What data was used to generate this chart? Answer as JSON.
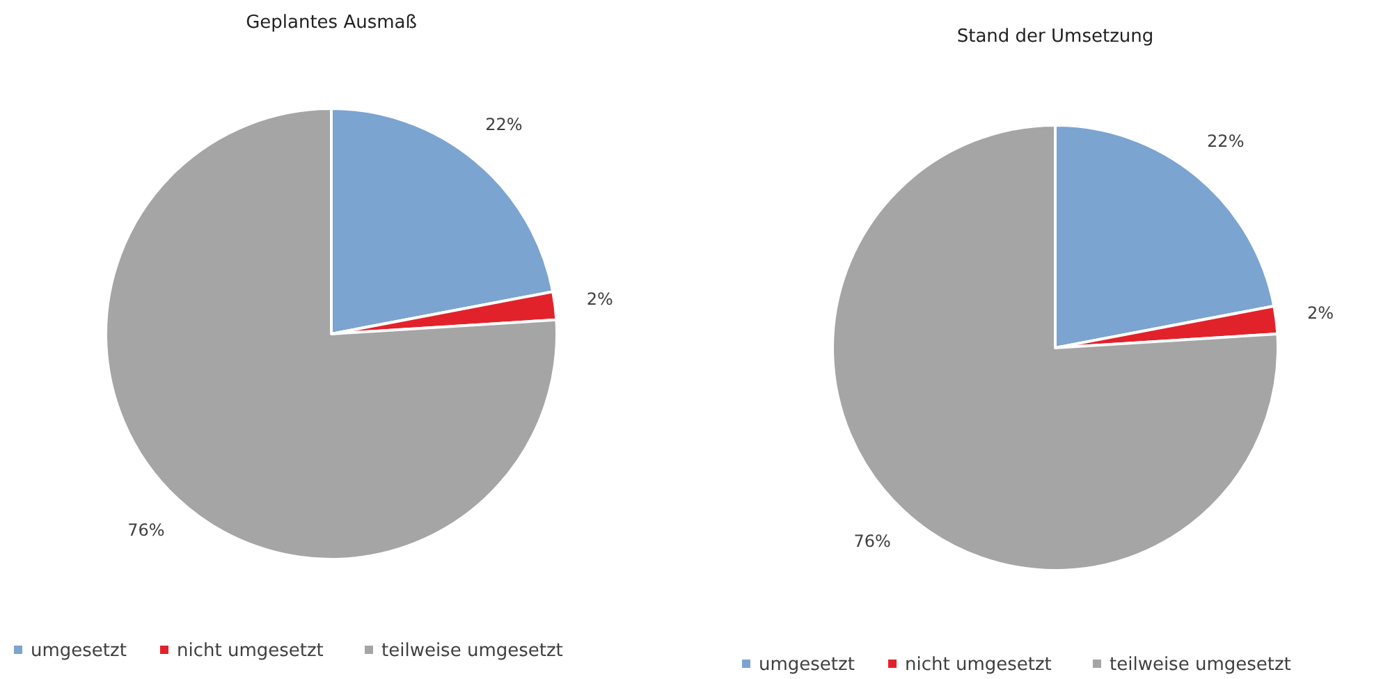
{
  "chart_data": [
    {
      "type": "pie",
      "title": "Geplantes Ausmaß",
      "categories": [
        "umgesetzt",
        "nicht umgesetzt",
        "teilweise umgesetzt"
      ],
      "values": [
        22,
        2,
        76
      ],
      "colors": [
        "#7ba4d0",
        "#e2222b",
        "#a5a5a5"
      ],
      "value_labels": [
        "22%",
        "2%",
        "76%"
      ],
      "legend": "bottom"
    },
    {
      "type": "pie",
      "title": "Stand der Umsetzung",
      "categories": [
        "umgesetzt",
        "nicht umgesetzt",
        "teilweise umgesetzt"
      ],
      "values": [
        22,
        2,
        76
      ],
      "colors": [
        "#7ba4d0",
        "#e2222b",
        "#a5a5a5"
      ],
      "value_labels": [
        "22%",
        "2%",
        "76%"
      ],
      "legend": "bottom"
    }
  ]
}
